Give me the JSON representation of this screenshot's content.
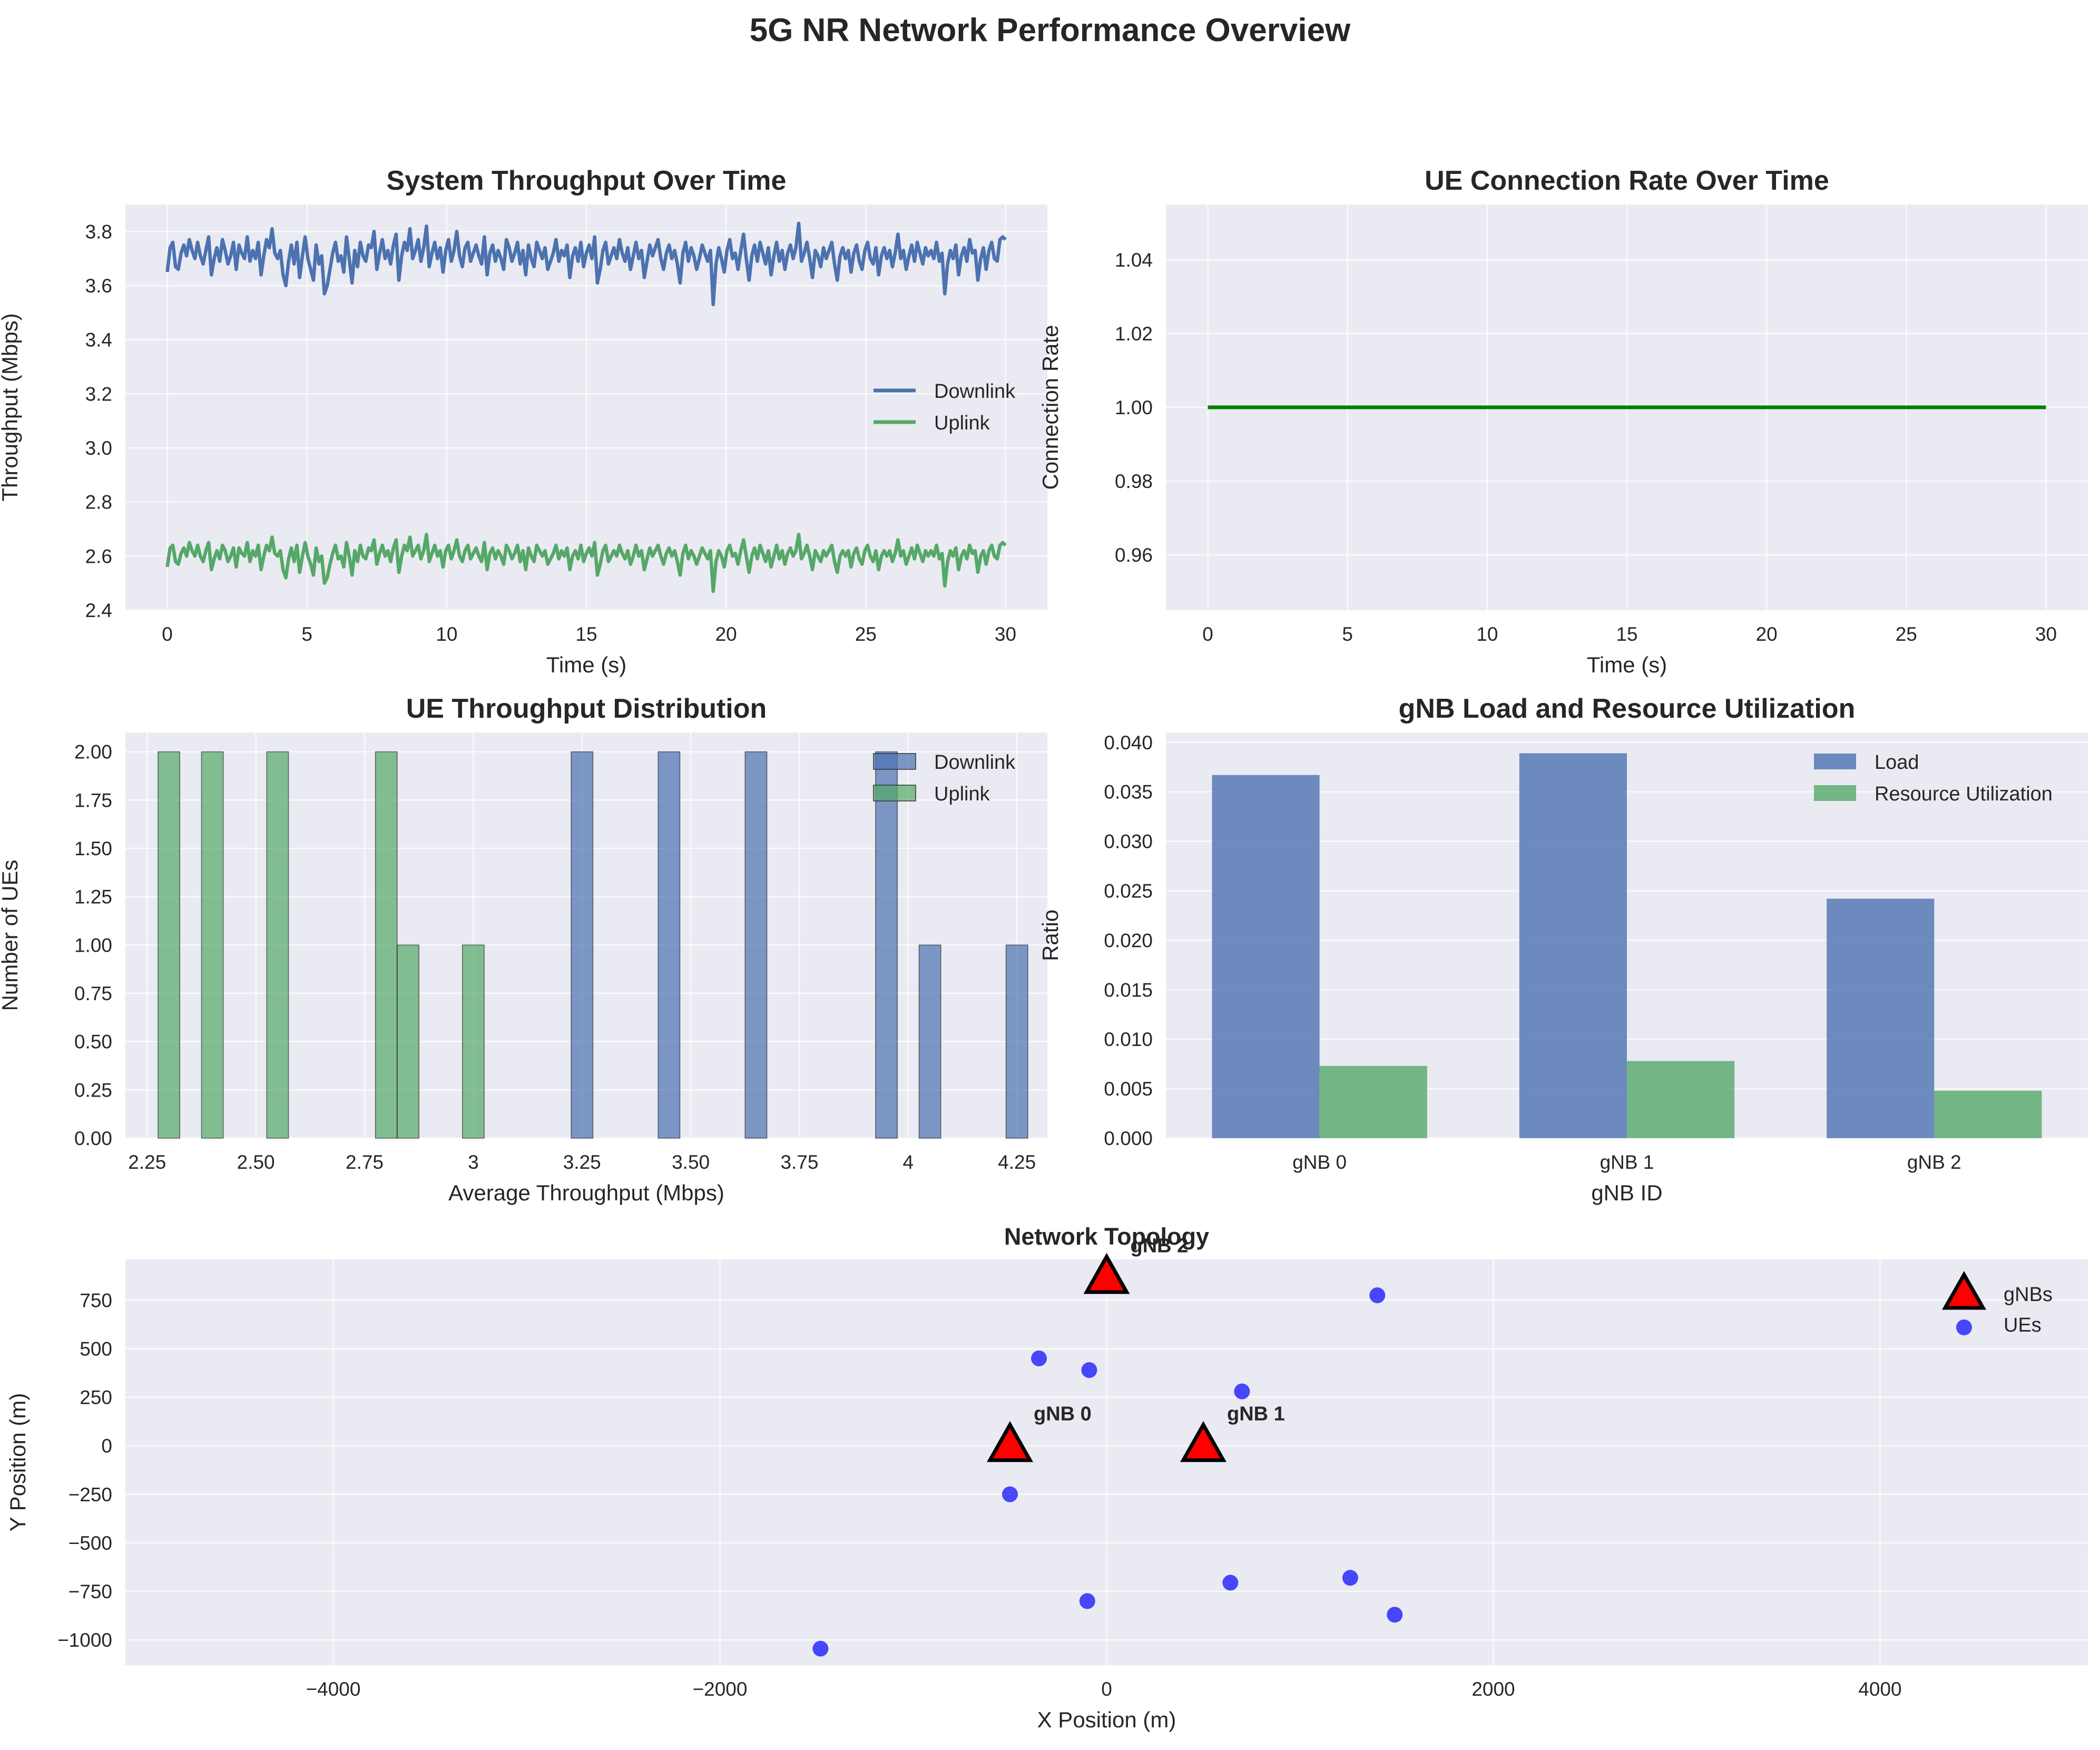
{
  "figure": {
    "title": "5G NR Network Performance Overview"
  },
  "colors": {
    "axes_bg": "#eaeaf2",
    "grid": "#ffffff",
    "text": "#262626",
    "blue": "#4c72b0",
    "green": "#55a868",
    "bar_blue": "#4c72b0",
    "bar_green": "#55a868",
    "dark_green": "#008000",
    "ue_blue": "#0000ff",
    "gnb_red": "#ff0000"
  },
  "chart_data": [
    {
      "id": "throughput",
      "type": "line",
      "title": "System Throughput Over Time",
      "xlabel": "Time (s)",
      "ylabel": "Throughput (Mbps)",
      "xlim": [
        -1.5,
        31.5
      ],
      "ylim": [
        2.4,
        3.9
      ],
      "xticks": [
        0,
        5,
        10,
        15,
        20,
        25,
        30
      ],
      "yticks": [
        2.4,
        2.6,
        2.8,
        3.0,
        3.2,
        3.4,
        3.6,
        3.8
      ],
      "ytick_decimals": 1,
      "legend": "center-right",
      "grid": true,
      "x_range": [
        0,
        30
      ],
      "x_step": 0.1,
      "series": [
        {
          "name": "Downlink",
          "color": "#4c72b0",
          "y": [
            3.65,
            3.74,
            3.76,
            3.67,
            3.66,
            3.72,
            3.75,
            3.71,
            3.77,
            3.73,
            3.7,
            3.76,
            3.71,
            3.68,
            3.73,
            3.78,
            3.64,
            3.7,
            3.74,
            3.69,
            3.77,
            3.73,
            3.68,
            3.71,
            3.76,
            3.66,
            3.75,
            3.72,
            3.7,
            3.78,
            3.69,
            3.73,
            3.7,
            3.76,
            3.64,
            3.71,
            3.77,
            3.74,
            3.81,
            3.72,
            3.7,
            3.73,
            3.64,
            3.6,
            3.69,
            3.75,
            3.68,
            3.76,
            3.63,
            3.71,
            3.78,
            3.7,
            3.66,
            3.62,
            3.75,
            3.68,
            3.71,
            3.57,
            3.6,
            3.66,
            3.72,
            3.76,
            3.69,
            3.71,
            3.65,
            3.78,
            3.7,
            3.61,
            3.73,
            3.67,
            3.76,
            3.71,
            3.69,
            3.75,
            3.74,
            3.8,
            3.66,
            3.72,
            3.77,
            3.7,
            3.73,
            3.68,
            3.75,
            3.79,
            3.62,
            3.71,
            3.76,
            3.73,
            3.81,
            3.7,
            3.73,
            3.77,
            3.69,
            3.74,
            3.82,
            3.67,
            3.72,
            3.76,
            3.7,
            3.74,
            3.65,
            3.73,
            3.77,
            3.69,
            3.73,
            3.8,
            3.71,
            3.67,
            3.74,
            3.76,
            3.69,
            3.72,
            3.75,
            3.71,
            3.68,
            3.78,
            3.64,
            3.72,
            3.75,
            3.69,
            3.73,
            3.7,
            3.66,
            3.77,
            3.74,
            3.69,
            3.72,
            3.76,
            3.68,
            3.73,
            3.64,
            3.75,
            3.7,
            3.67,
            3.76,
            3.73,
            3.7,
            3.74,
            3.66,
            3.69,
            3.72,
            3.77,
            3.69,
            3.73,
            3.71,
            3.75,
            3.63,
            3.71,
            3.74,
            3.69,
            3.76,
            3.67,
            3.72,
            3.75,
            3.7,
            3.78,
            3.61,
            3.66,
            3.73,
            3.76,
            3.68,
            3.71,
            3.74,
            3.7,
            3.77,
            3.72,
            3.69,
            3.74,
            3.66,
            3.71,
            3.76,
            3.7,
            3.73,
            3.63,
            3.69,
            3.75,
            3.71,
            3.74,
            3.77,
            3.7,
            3.66,
            3.72,
            3.75,
            3.7,
            3.73,
            3.68,
            3.61,
            3.72,
            3.76,
            3.69,
            3.74,
            3.71,
            3.66,
            3.7,
            3.75,
            3.72,
            3.69,
            3.73,
            3.53,
            3.68,
            3.74,
            3.7,
            3.65,
            3.73,
            3.77,
            3.7,
            3.72,
            3.66,
            3.73,
            3.79,
            3.7,
            3.62,
            3.71,
            3.75,
            3.69,
            3.76,
            3.72,
            3.68,
            3.74,
            3.64,
            3.71,
            3.76,
            3.69,
            3.73,
            3.66,
            3.72,
            3.75,
            3.7,
            3.74,
            3.83,
            3.69,
            3.72,
            3.76,
            3.7,
            3.63,
            3.73,
            3.71,
            3.67,
            3.74,
            3.7,
            3.73,
            3.76,
            3.68,
            3.62,
            3.71,
            3.74,
            3.7,
            3.73,
            3.65,
            3.72,
            3.75,
            3.69,
            3.66,
            3.73,
            3.76,
            3.7,
            3.68,
            3.74,
            3.64,
            3.71,
            3.74,
            3.7,
            3.73,
            3.67,
            3.72,
            3.79,
            3.7,
            3.73,
            3.66,
            3.71,
            3.75,
            3.69,
            3.76,
            3.72,
            3.68,
            3.74,
            3.71,
            3.73,
            3.7,
            3.76,
            3.69,
            3.72,
            3.57,
            3.68,
            3.73,
            3.7,
            3.75,
            3.64,
            3.71,
            3.74,
            3.69,
            3.77,
            3.72,
            3.73,
            3.62,
            3.7,
            3.74,
            3.66,
            3.73,
            3.76,
            3.7,
            3.69,
            3.77,
            3.78,
            3.77
          ]
        },
        {
          "name": "Uplink",
          "color": "#55a868",
          "y": [
            2.56,
            2.63,
            2.64,
            2.58,
            2.57,
            2.61,
            2.63,
            2.6,
            2.65,
            2.62,
            2.6,
            2.64,
            2.6,
            2.58,
            2.62,
            2.65,
            2.55,
            2.59,
            2.62,
            2.59,
            2.64,
            2.62,
            2.58,
            2.6,
            2.63,
            2.56,
            2.63,
            2.61,
            2.6,
            2.65,
            2.58,
            2.62,
            2.6,
            2.64,
            2.55,
            2.6,
            2.64,
            2.62,
            2.67,
            2.61,
            2.6,
            2.62,
            2.55,
            2.52,
            2.59,
            2.63,
            2.58,
            2.64,
            2.54,
            2.6,
            2.65,
            2.6,
            2.57,
            2.53,
            2.63,
            2.58,
            2.6,
            2.5,
            2.52,
            2.57,
            2.61,
            2.64,
            2.59,
            2.6,
            2.56,
            2.65,
            2.6,
            2.53,
            2.62,
            2.58,
            2.64,
            2.6,
            2.59,
            2.63,
            2.62,
            2.66,
            2.57,
            2.61,
            2.64,
            2.6,
            2.62,
            2.58,
            2.63,
            2.66,
            2.54,
            2.6,
            2.64,
            2.62,
            2.67,
            2.6,
            2.62,
            2.64,
            2.59,
            2.62,
            2.68,
            2.58,
            2.61,
            2.64,
            2.6,
            2.62,
            2.56,
            2.62,
            2.64,
            2.59,
            2.62,
            2.66,
            2.6,
            2.58,
            2.62,
            2.64,
            2.59,
            2.61,
            2.63,
            2.6,
            2.58,
            2.65,
            2.55,
            2.61,
            2.63,
            2.59,
            2.62,
            2.6,
            2.57,
            2.64,
            2.62,
            2.59,
            2.61,
            2.64,
            2.58,
            2.62,
            2.55,
            2.63,
            2.6,
            2.58,
            2.64,
            2.62,
            2.6,
            2.62,
            2.57,
            2.59,
            2.61,
            2.64,
            2.59,
            2.62,
            2.6,
            2.63,
            2.55,
            2.6,
            2.62,
            2.59,
            2.64,
            2.58,
            2.61,
            2.63,
            2.6,
            2.65,
            2.53,
            2.57,
            2.62,
            2.64,
            2.58,
            2.6,
            2.62,
            2.6,
            2.64,
            2.61,
            2.59,
            2.62,
            2.57,
            2.6,
            2.64,
            2.6,
            2.62,
            2.55,
            2.59,
            2.63,
            2.6,
            2.62,
            2.64,
            2.6,
            2.57,
            2.61,
            2.63,
            2.6,
            2.62,
            2.58,
            2.53,
            2.61,
            2.64,
            2.59,
            2.62,
            2.6,
            2.57,
            2.6,
            2.63,
            2.61,
            2.59,
            2.62,
            2.47,
            2.58,
            2.62,
            2.6,
            2.56,
            2.62,
            2.64,
            2.6,
            2.61,
            2.57,
            2.62,
            2.66,
            2.6,
            2.54,
            2.6,
            2.63,
            2.59,
            2.64,
            2.61,
            2.58,
            2.62,
            2.56,
            2.6,
            2.64,
            2.59,
            2.62,
            2.57,
            2.61,
            2.63,
            2.6,
            2.62,
            2.68,
            2.59,
            2.61,
            2.64,
            2.6,
            2.55,
            2.62,
            2.6,
            2.58,
            2.62,
            2.6,
            2.62,
            2.64,
            2.58,
            2.54,
            2.6,
            2.62,
            2.6,
            2.62,
            2.56,
            2.61,
            2.63,
            2.59,
            2.57,
            2.62,
            2.64,
            2.6,
            2.58,
            2.62,
            2.55,
            2.6,
            2.62,
            2.6,
            2.62,
            2.58,
            2.61,
            2.66,
            2.6,
            2.62,
            2.57,
            2.6,
            2.63,
            2.59,
            2.64,
            2.61,
            2.58,
            2.62,
            2.6,
            2.62,
            2.6,
            2.64,
            2.59,
            2.61,
            2.49,
            2.58,
            2.62,
            2.6,
            2.63,
            2.55,
            2.6,
            2.62,
            2.59,
            2.64,
            2.61,
            2.62,
            2.54,
            2.6,
            2.62,
            2.57,
            2.62,
            2.64,
            2.6,
            2.59,
            2.64,
            2.65,
            2.64
          ]
        }
      ]
    },
    {
      "id": "connection",
      "type": "line",
      "title": "UE Connection Rate Over Time",
      "xlabel": "Time (s)",
      "ylabel": "Connection Rate",
      "xlim": [
        -1.5,
        31.5
      ],
      "ylim": [
        0.945,
        1.055
      ],
      "xticks": [
        0,
        5,
        10,
        15,
        20,
        25,
        30
      ],
      "yticks": [
        0.96,
        0.98,
        1.0,
        1.02,
        1.04
      ],
      "ytick_decimals": 2,
      "grid": true,
      "series": [
        {
          "name": "",
          "color": "#008000",
          "x": [
            0,
            30
          ],
          "y": [
            1.0,
            1.0
          ]
        }
      ]
    },
    {
      "id": "histogram",
      "type": "bar",
      "title": "UE Throughput Distribution",
      "xlabel": "Average Throughput (Mbps)",
      "ylabel": "Number of UEs",
      "xlim": [
        2.2,
        4.32
      ],
      "ylim": [
        0,
        2.1
      ],
      "xticks": [
        2.25,
        2.5,
        2.75,
        3.0,
        3.25,
        3.5,
        3.75,
        4.0,
        4.25
      ],
      "yticks": [
        0.0,
        0.25,
        0.5,
        0.75,
        1.0,
        1.25,
        1.5,
        1.75,
        2.0
      ],
      "ytick_decimals": 2,
      "legend": "top-right",
      "grid": true,
      "bin_width": 0.05,
      "series": [
        {
          "name": "Downlink",
          "color": "#4c72b0",
          "bins": [
            [
              3.25,
              2
            ],
            [
              3.45,
              2
            ],
            [
              3.65,
              2
            ],
            [
              3.95,
              2
            ],
            [
              4.05,
              1
            ],
            [
              4.25,
              1
            ]
          ]
        },
        {
          "name": "Uplink",
          "color": "#55a868",
          "bins": [
            [
              2.3,
              2
            ],
            [
              2.4,
              2
            ],
            [
              2.55,
              2
            ],
            [
              2.8,
              2
            ],
            [
              2.85,
              1
            ],
            [
              3.0,
              1
            ]
          ]
        }
      ]
    },
    {
      "id": "gnb_load",
      "type": "bar",
      "title": "gNB Load and Resource Utilization",
      "xlabel": "gNB ID",
      "ylabel": "Ratio",
      "categories": [
        "gNB 0",
        "gNB 1",
        "gNB 2"
      ],
      "ylim": [
        0,
        0.041
      ],
      "yticks": [
        0.0,
        0.005,
        0.01,
        0.015,
        0.02,
        0.025,
        0.03,
        0.035,
        0.04
      ],
      "ytick_decimals": 3,
      "legend": "top-right",
      "grid": true,
      "series": [
        {
          "name": "Load",
          "color": "#4c72b0",
          "values": [
            0.0367,
            0.0389,
            0.0242
          ]
        },
        {
          "name": "Resource Utilization",
          "color": "#55a868",
          "values": [
            0.0073,
            0.0078,
            0.0048
          ]
        }
      ]
    },
    {
      "id": "topology",
      "type": "scatter",
      "title": "Network Topology",
      "xlabel": "X Position (m)",
      "ylabel": "Y Position (m)",
      "xlim": [
        -5075,
        5075
      ],
      "ylim": [
        -1130,
        960
      ],
      "xticks": [
        -4000,
        -2000,
        0,
        2000,
        4000
      ],
      "yticks": [
        -1000,
        -750,
        -500,
        -250,
        0,
        250,
        500,
        750
      ],
      "ytick_decimals": 0,
      "legend": "top-right",
      "grid": true,
      "gnbs": [
        {
          "label": "gNB 0",
          "x": -500,
          "y": 0
        },
        {
          "label": "gNB 1",
          "x": 500,
          "y": 0
        },
        {
          "label": "gNB 2",
          "x": 0,
          "y": 866
        }
      ],
      "ues": [
        [
          1400,
          775
        ],
        [
          -350,
          450
        ],
        [
          -90,
          390
        ],
        [
          700,
          280
        ],
        [
          -500,
          -250
        ],
        [
          -100,
          -800
        ],
        [
          640,
          -705
        ],
        [
          1260,
          -680
        ],
        [
          1490,
          -870
        ],
        [
          -1480,
          -1045
        ]
      ],
      "series_names": {
        "gnbs": "gNBs",
        "ues": "UEs"
      }
    }
  ]
}
